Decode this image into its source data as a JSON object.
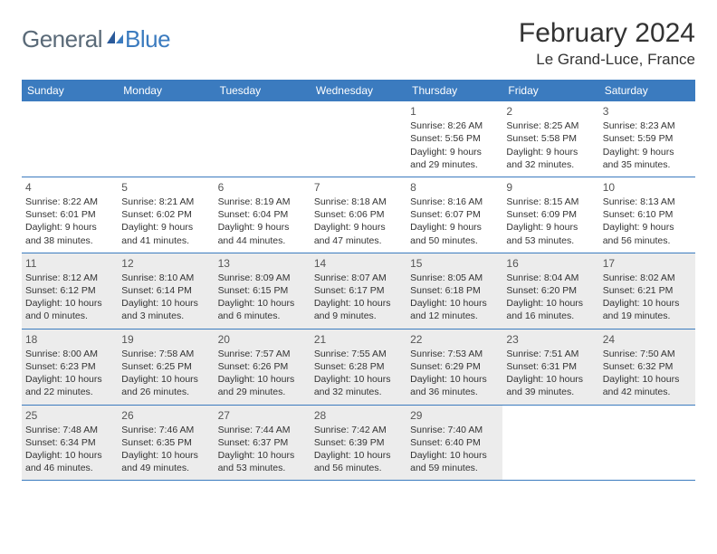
{
  "logo": {
    "general": "General",
    "blue": "Blue"
  },
  "title": "February 2024",
  "location": "Le Grand-Luce, France",
  "colors": {
    "header_bg": "#3b7bbf",
    "header_text": "#ffffff",
    "shade_bg": "#ececec",
    "border": "#3b7bbf",
    "text": "#333333",
    "logo_gray": "#5a6a78",
    "logo_blue": "#3b7bbf"
  },
  "day_names": [
    "Sunday",
    "Monday",
    "Tuesday",
    "Wednesday",
    "Thursday",
    "Friday",
    "Saturday"
  ],
  "weeks": [
    [
      {
        "num": "",
        "sunrise": "",
        "sunset": "",
        "daylight1": "",
        "daylight2": ""
      },
      {
        "num": "",
        "sunrise": "",
        "sunset": "",
        "daylight1": "",
        "daylight2": ""
      },
      {
        "num": "",
        "sunrise": "",
        "sunset": "",
        "daylight1": "",
        "daylight2": ""
      },
      {
        "num": "",
        "sunrise": "",
        "sunset": "",
        "daylight1": "",
        "daylight2": ""
      },
      {
        "num": "1",
        "sunrise": "Sunrise: 8:26 AM",
        "sunset": "Sunset: 5:56 PM",
        "daylight1": "Daylight: 9 hours",
        "daylight2": "and 29 minutes."
      },
      {
        "num": "2",
        "sunrise": "Sunrise: 8:25 AM",
        "sunset": "Sunset: 5:58 PM",
        "daylight1": "Daylight: 9 hours",
        "daylight2": "and 32 minutes."
      },
      {
        "num": "3",
        "sunrise": "Sunrise: 8:23 AM",
        "sunset": "Sunset: 5:59 PM",
        "daylight1": "Daylight: 9 hours",
        "daylight2": "and 35 minutes."
      }
    ],
    [
      {
        "num": "4",
        "sunrise": "Sunrise: 8:22 AM",
        "sunset": "Sunset: 6:01 PM",
        "daylight1": "Daylight: 9 hours",
        "daylight2": "and 38 minutes."
      },
      {
        "num": "5",
        "sunrise": "Sunrise: 8:21 AM",
        "sunset": "Sunset: 6:02 PM",
        "daylight1": "Daylight: 9 hours",
        "daylight2": "and 41 minutes."
      },
      {
        "num": "6",
        "sunrise": "Sunrise: 8:19 AM",
        "sunset": "Sunset: 6:04 PM",
        "daylight1": "Daylight: 9 hours",
        "daylight2": "and 44 minutes."
      },
      {
        "num": "7",
        "sunrise": "Sunrise: 8:18 AM",
        "sunset": "Sunset: 6:06 PM",
        "daylight1": "Daylight: 9 hours",
        "daylight2": "and 47 minutes."
      },
      {
        "num": "8",
        "sunrise": "Sunrise: 8:16 AM",
        "sunset": "Sunset: 6:07 PM",
        "daylight1": "Daylight: 9 hours",
        "daylight2": "and 50 minutes."
      },
      {
        "num": "9",
        "sunrise": "Sunrise: 8:15 AM",
        "sunset": "Sunset: 6:09 PM",
        "daylight1": "Daylight: 9 hours",
        "daylight2": "and 53 minutes."
      },
      {
        "num": "10",
        "sunrise": "Sunrise: 8:13 AM",
        "sunset": "Sunset: 6:10 PM",
        "daylight1": "Daylight: 9 hours",
        "daylight2": "and 56 minutes."
      }
    ],
    [
      {
        "num": "11",
        "sunrise": "Sunrise: 8:12 AM",
        "sunset": "Sunset: 6:12 PM",
        "daylight1": "Daylight: 10 hours",
        "daylight2": "and 0 minutes."
      },
      {
        "num": "12",
        "sunrise": "Sunrise: 8:10 AM",
        "sunset": "Sunset: 6:14 PM",
        "daylight1": "Daylight: 10 hours",
        "daylight2": "and 3 minutes."
      },
      {
        "num": "13",
        "sunrise": "Sunrise: 8:09 AM",
        "sunset": "Sunset: 6:15 PM",
        "daylight1": "Daylight: 10 hours",
        "daylight2": "and 6 minutes."
      },
      {
        "num": "14",
        "sunrise": "Sunrise: 8:07 AM",
        "sunset": "Sunset: 6:17 PM",
        "daylight1": "Daylight: 10 hours",
        "daylight2": "and 9 minutes."
      },
      {
        "num": "15",
        "sunrise": "Sunrise: 8:05 AM",
        "sunset": "Sunset: 6:18 PM",
        "daylight1": "Daylight: 10 hours",
        "daylight2": "and 12 minutes."
      },
      {
        "num": "16",
        "sunrise": "Sunrise: 8:04 AM",
        "sunset": "Sunset: 6:20 PM",
        "daylight1": "Daylight: 10 hours",
        "daylight2": "and 16 minutes."
      },
      {
        "num": "17",
        "sunrise": "Sunrise: 8:02 AM",
        "sunset": "Sunset: 6:21 PM",
        "daylight1": "Daylight: 10 hours",
        "daylight2": "and 19 minutes."
      }
    ],
    [
      {
        "num": "18",
        "sunrise": "Sunrise: 8:00 AM",
        "sunset": "Sunset: 6:23 PM",
        "daylight1": "Daylight: 10 hours",
        "daylight2": "and 22 minutes."
      },
      {
        "num": "19",
        "sunrise": "Sunrise: 7:58 AM",
        "sunset": "Sunset: 6:25 PM",
        "daylight1": "Daylight: 10 hours",
        "daylight2": "and 26 minutes."
      },
      {
        "num": "20",
        "sunrise": "Sunrise: 7:57 AM",
        "sunset": "Sunset: 6:26 PM",
        "daylight1": "Daylight: 10 hours",
        "daylight2": "and 29 minutes."
      },
      {
        "num": "21",
        "sunrise": "Sunrise: 7:55 AM",
        "sunset": "Sunset: 6:28 PM",
        "daylight1": "Daylight: 10 hours",
        "daylight2": "and 32 minutes."
      },
      {
        "num": "22",
        "sunrise": "Sunrise: 7:53 AM",
        "sunset": "Sunset: 6:29 PM",
        "daylight1": "Daylight: 10 hours",
        "daylight2": "and 36 minutes."
      },
      {
        "num": "23",
        "sunrise": "Sunrise: 7:51 AM",
        "sunset": "Sunset: 6:31 PM",
        "daylight1": "Daylight: 10 hours",
        "daylight2": "and 39 minutes."
      },
      {
        "num": "24",
        "sunrise": "Sunrise: 7:50 AM",
        "sunset": "Sunset: 6:32 PM",
        "daylight1": "Daylight: 10 hours",
        "daylight2": "and 42 minutes."
      }
    ],
    [
      {
        "num": "25",
        "sunrise": "Sunrise: 7:48 AM",
        "sunset": "Sunset: 6:34 PM",
        "daylight1": "Daylight: 10 hours",
        "daylight2": "and 46 minutes."
      },
      {
        "num": "26",
        "sunrise": "Sunrise: 7:46 AM",
        "sunset": "Sunset: 6:35 PM",
        "daylight1": "Daylight: 10 hours",
        "daylight2": "and 49 minutes."
      },
      {
        "num": "27",
        "sunrise": "Sunrise: 7:44 AM",
        "sunset": "Sunset: 6:37 PM",
        "daylight1": "Daylight: 10 hours",
        "daylight2": "and 53 minutes."
      },
      {
        "num": "28",
        "sunrise": "Sunrise: 7:42 AM",
        "sunset": "Sunset: 6:39 PM",
        "daylight1": "Daylight: 10 hours",
        "daylight2": "and 56 minutes."
      },
      {
        "num": "29",
        "sunrise": "Sunrise: 7:40 AM",
        "sunset": "Sunset: 6:40 PM",
        "daylight1": "Daylight: 10 hours",
        "daylight2": "and 59 minutes."
      },
      {
        "num": "",
        "sunrise": "",
        "sunset": "",
        "daylight1": "",
        "daylight2": ""
      },
      {
        "num": "",
        "sunrise": "",
        "sunset": "",
        "daylight1": "",
        "daylight2": ""
      }
    ]
  ],
  "shaded_rows": [
    2,
    3,
    4
  ]
}
